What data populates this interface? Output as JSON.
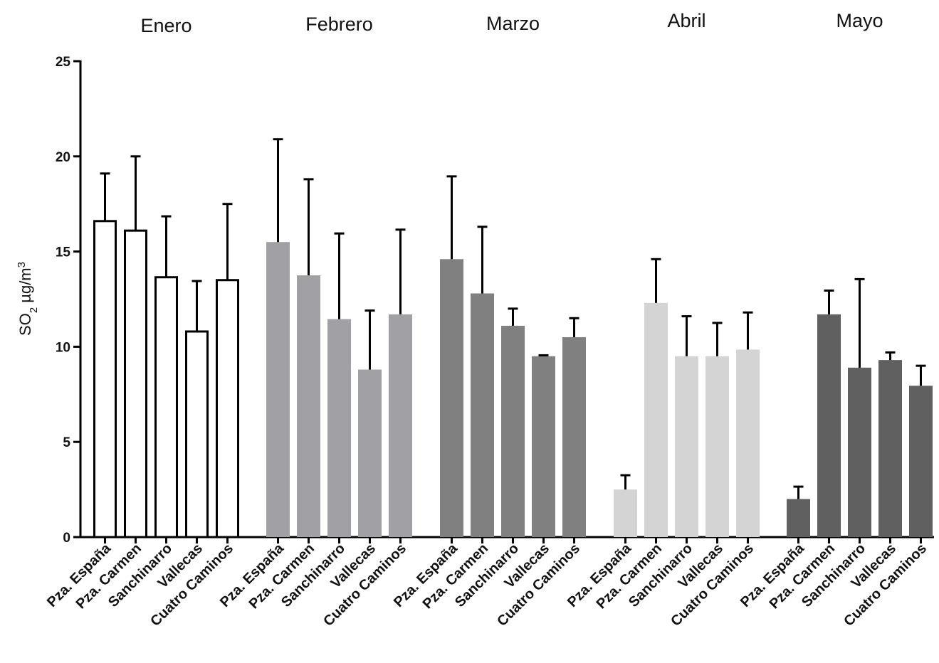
{
  "chart_data": {
    "type": "bar",
    "ylabel": "SO2 µg/m3",
    "ylabel_parts": {
      "main": "SO",
      "sub": "2",
      "unit": " µg/m",
      "sup": "3"
    },
    "ylim": [
      0,
      25
    ],
    "yticks": [
      "0",
      "5",
      "10",
      "15",
      "20",
      "25"
    ],
    "grid": false,
    "legend": "none",
    "categories": [
      "Pza. España",
      "Pza. Carmen",
      "Sanchinarro",
      "Vallecas",
      "Cuatro Caminos"
    ],
    "groups": [
      {
        "name": "Enero",
        "color": "#ffffff",
        "outline": "#000000",
        "values": [
          16.6,
          16.1,
          13.65,
          10.8,
          13.5
        ],
        "errors": [
          2.5,
          3.9,
          3.2,
          2.65,
          4.0
        ]
      },
      {
        "name": "Febrero",
        "color": "#a0a0a5",
        "values": [
          15.5,
          13.75,
          11.45,
          8.8,
          11.7
        ],
        "errors": [
          5.4,
          5.05,
          4.5,
          3.1,
          4.45
        ]
      },
      {
        "name": "Marzo",
        "color": "#808080",
        "values": [
          14.6,
          12.8,
          11.1,
          9.5,
          10.5
        ],
        "errors": [
          4.35,
          3.5,
          0.9,
          0.05,
          1.0
        ]
      },
      {
        "name": "Abril",
        "color": "#d4d4d4",
        "values": [
          2.5,
          12.3,
          9.5,
          9.5,
          9.85
        ],
        "errors": [
          0.75,
          2.3,
          2.1,
          1.75,
          1.95
        ]
      },
      {
        "name": "Mayo",
        "color": "#606060",
        "values": [
          2.0,
          11.7,
          8.9,
          9.3,
          7.95
        ],
        "errors": [
          0.65,
          1.25,
          4.65,
          0.4,
          1.05
        ]
      }
    ]
  }
}
